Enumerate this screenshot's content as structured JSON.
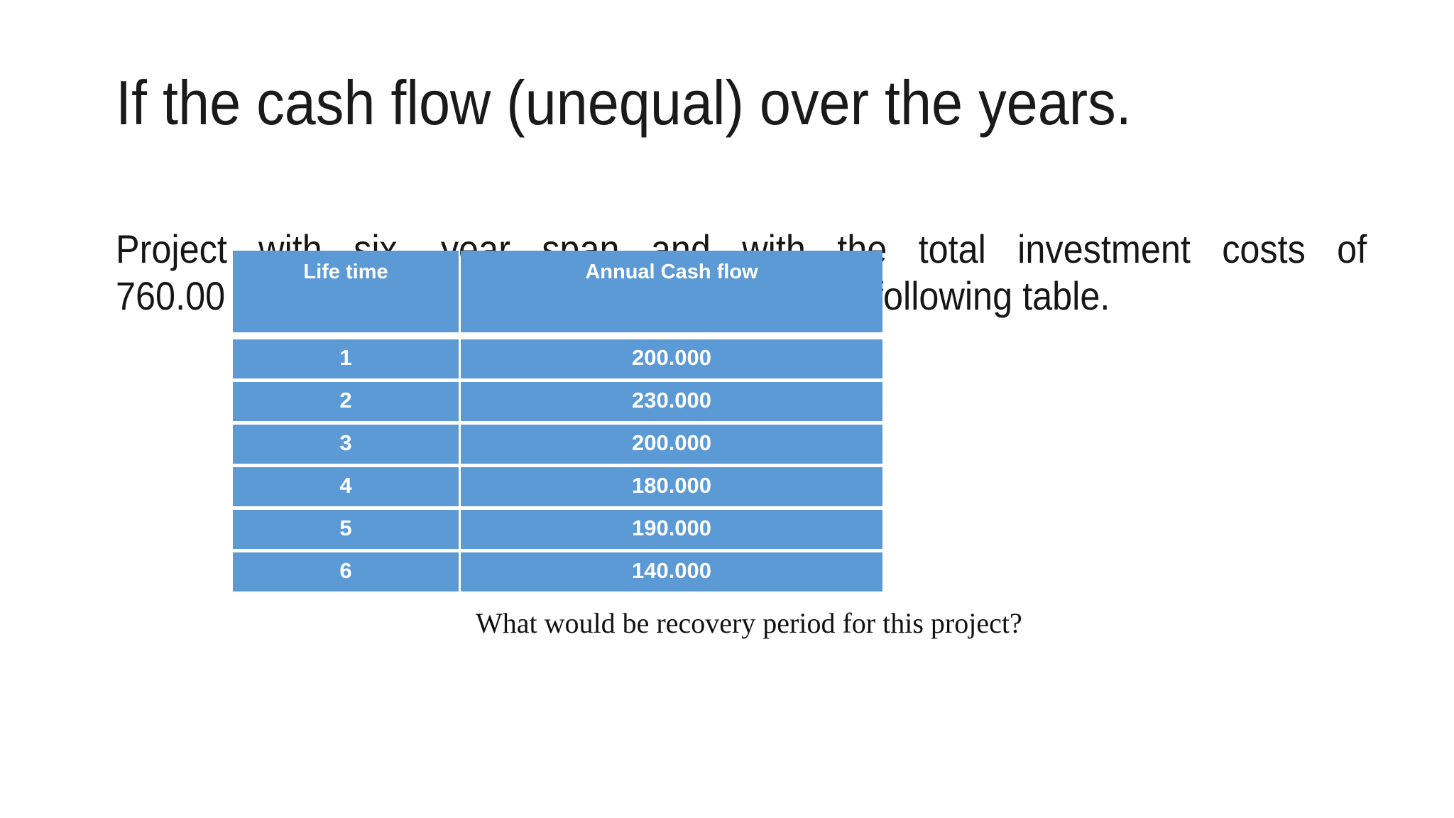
{
  "slide": {
    "title": "If the cash flow (unequal) over the years.",
    "paragraph": {
      "line1": "Project with six -year span and with the total investment costs of",
      "line2_left": "760.00",
      "line2_right": "following table."
    },
    "table": {
      "headers": [
        "Life time",
        "Annual Cash flow"
      ],
      "rows": [
        {
          "lifetime": "1",
          "cashflow": "200.000"
        },
        {
          "lifetime": "2",
          "cashflow": "230.000"
        },
        {
          "lifetime": "3",
          "cashflow": "200.000"
        },
        {
          "lifetime": "4",
          "cashflow": "180.000"
        },
        {
          "lifetime": "5",
          "cashflow": "190.000"
        },
        {
          "lifetime": "6",
          "cashflow": "140.000"
        }
      ]
    },
    "question": "What would be recovery period for this project?",
    "colors": {
      "table_fill": "#5B9AD5",
      "table_text": "#FFFFFF",
      "body_text": "#161616",
      "background": "#FFFFFF"
    }
  }
}
